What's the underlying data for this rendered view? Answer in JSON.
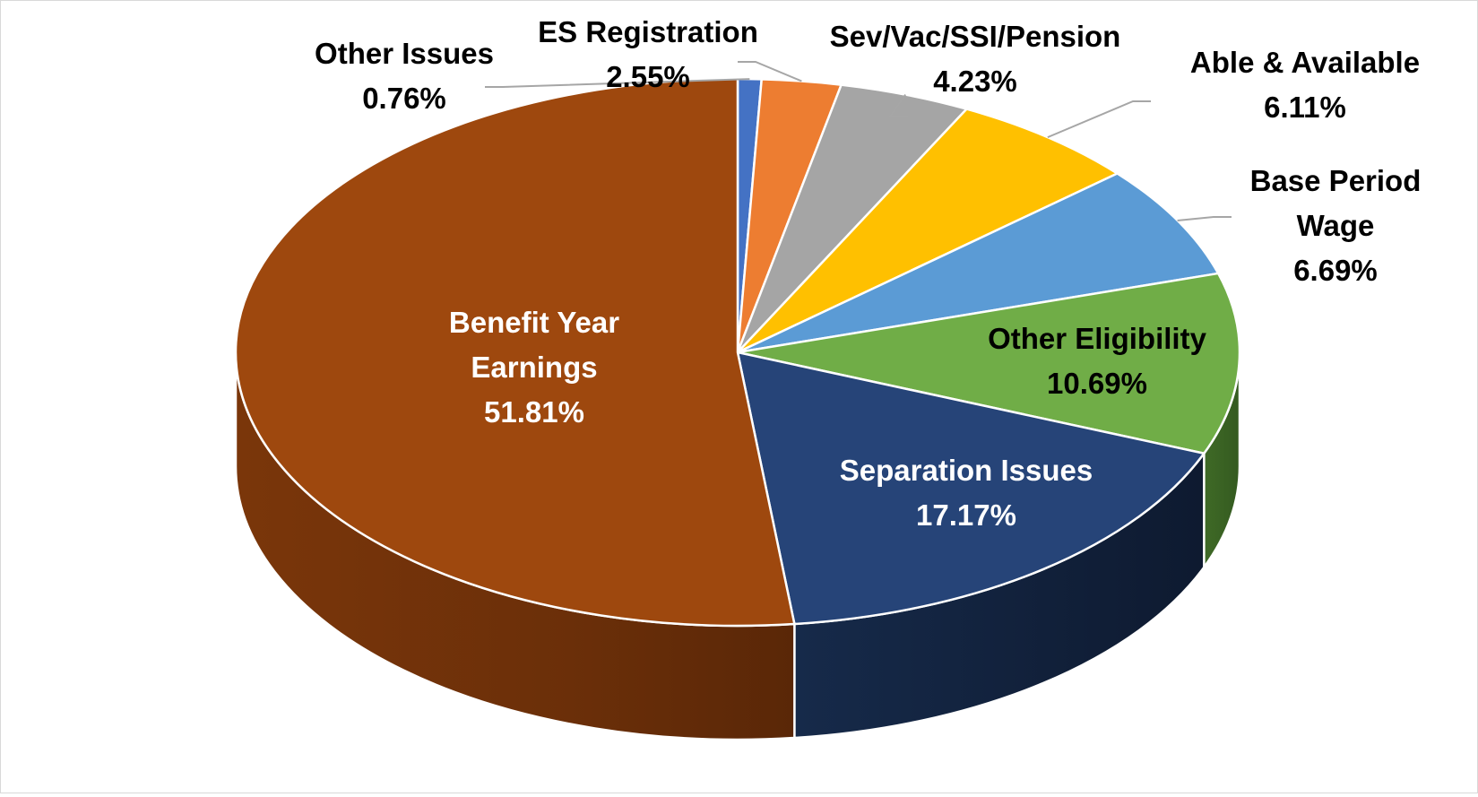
{
  "chart_data": {
    "type": "pie",
    "style": "3d",
    "title": "",
    "slices": [
      {
        "label": [
          "Other Issues"
        ],
        "value": 0.76,
        "value_label": "0.76%",
        "color": "#4472C4",
        "label_color": "#000000",
        "label_placement": "outside"
      },
      {
        "label": [
          "ES Registration"
        ],
        "value": 2.55,
        "value_label": "2.55%",
        "color": "#ED7D31",
        "label_color": "#000000",
        "label_placement": "outside"
      },
      {
        "label": [
          "Sev/Vac/SSI/Pension"
        ],
        "value": 4.23,
        "value_label": "4.23%",
        "color": "#A5A5A5",
        "label_color": "#000000",
        "label_placement": "outside"
      },
      {
        "label": [
          "Able & Available"
        ],
        "value": 6.11,
        "value_label": "6.11%",
        "color": "#FFC000",
        "label_color": "#000000",
        "label_placement": "outside"
      },
      {
        "label": [
          "Base Period",
          "Wage"
        ],
        "value": 6.69,
        "value_label": "6.69%",
        "color": "#5B9BD5",
        "label_color": "#000000",
        "label_placement": "outside"
      },
      {
        "label": [
          "Other Eligibility"
        ],
        "value": 10.69,
        "value_label": "10.69%",
        "color": "#70AD47",
        "label_color": "#000000",
        "label_placement": "inside"
      },
      {
        "label": [
          "Separation Issues"
        ],
        "value": 17.17,
        "value_label": "17.17%",
        "color": "#264478",
        "label_color": "#ffffff",
        "label_placement": "inside"
      },
      {
        "label": [
          "Benefit Year",
          "Earnings"
        ],
        "value": 51.81,
        "value_label": "51.81%",
        "color": "#9E480E",
        "label_color": "#ffffff",
        "label_placement": "inside"
      }
    ]
  }
}
